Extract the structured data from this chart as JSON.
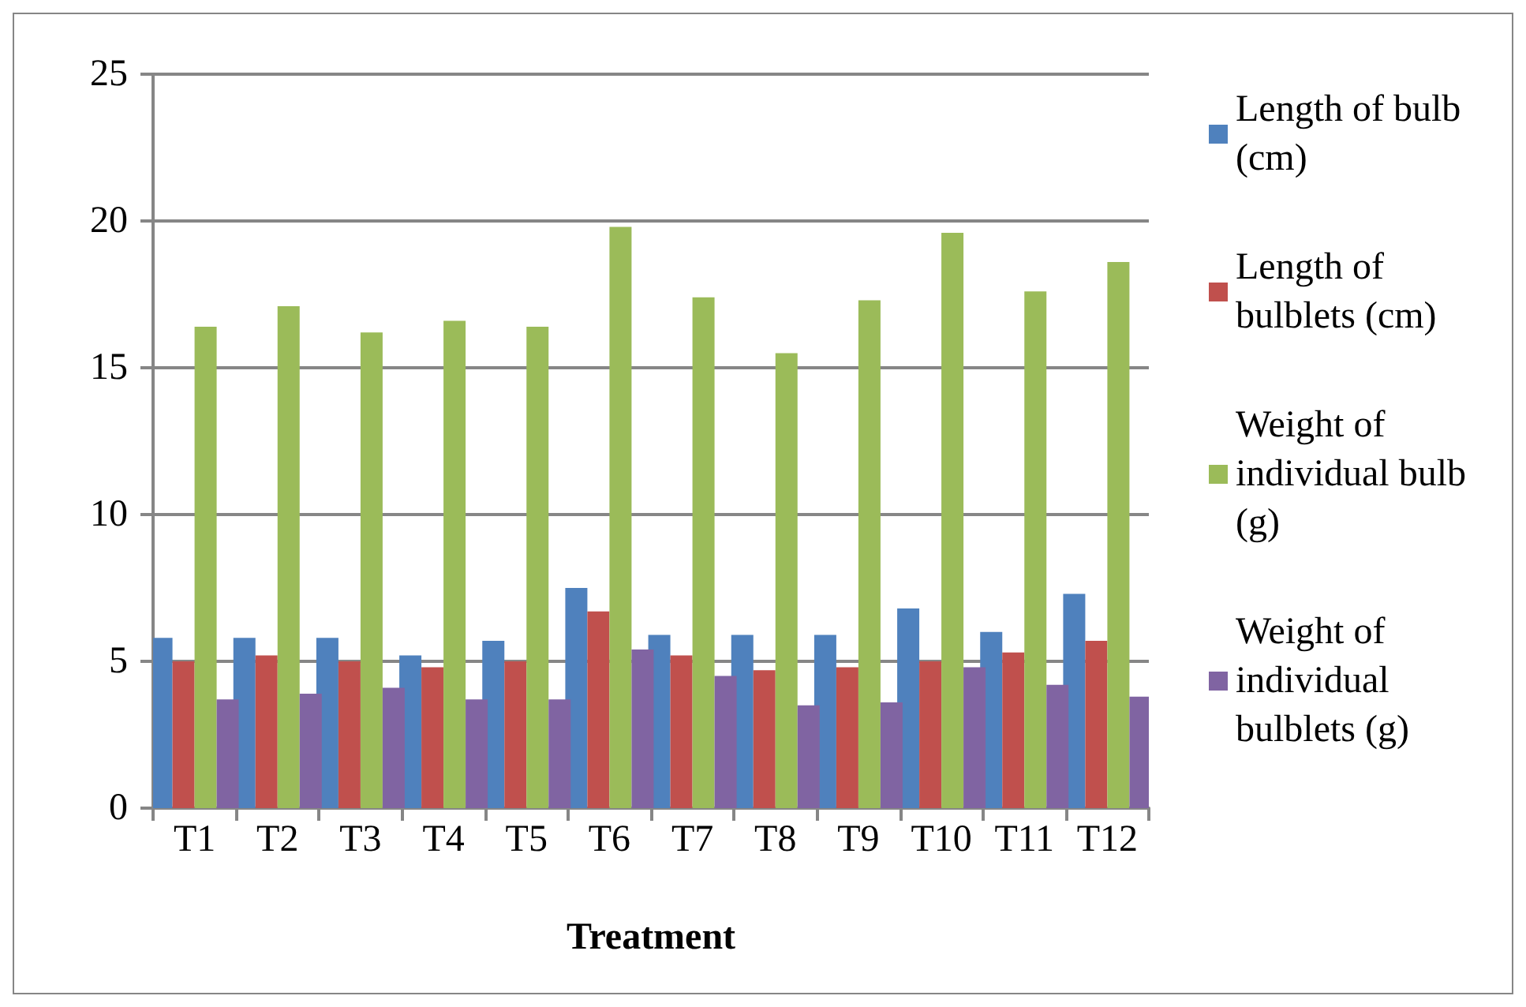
{
  "chart_data": {
    "type": "bar",
    "xlabel": "Treatment",
    "categories": [
      "T1",
      "T2",
      "T3",
      "T4",
      "T5",
      "T6",
      "T7",
      "T8",
      "T9",
      "T10",
      "T11",
      "T12"
    ],
    "series": [
      {
        "name": "Length of bulb (cm)",
        "color": "#4f81bd",
        "values": [
          5.8,
          5.8,
          5.8,
          5.2,
          5.7,
          7.5,
          5.9,
          5.9,
          5.9,
          6.8,
          6.0,
          7.3
        ]
      },
      {
        "name": "Length of bulblets (cm)",
        "color": "#c0504d",
        "values": [
          5.0,
          5.2,
          5.0,
          4.8,
          5.0,
          6.7,
          5.2,
          4.7,
          4.8,
          5.0,
          5.3,
          5.7
        ]
      },
      {
        "name": "Weight of individual bulb (g)",
        "color": "#9bbb59",
        "values": [
          16.4,
          17.1,
          16.2,
          16.6,
          16.4,
          19.8,
          17.4,
          15.5,
          17.3,
          19.6,
          17.6,
          18.6
        ]
      },
      {
        "name": "Weight of individual bulblets (g)",
        "color": "#8064a2",
        "values": [
          3.7,
          3.9,
          4.1,
          3.7,
          3.7,
          5.4,
          4.5,
          3.5,
          3.6,
          4.8,
          4.2,
          3.8
        ]
      }
    ],
    "ylim": [
      0,
      25
    ],
    "yticks": [
      0,
      5,
      10,
      15,
      20,
      25
    ],
    "grid": "y",
    "legend": "right"
  }
}
